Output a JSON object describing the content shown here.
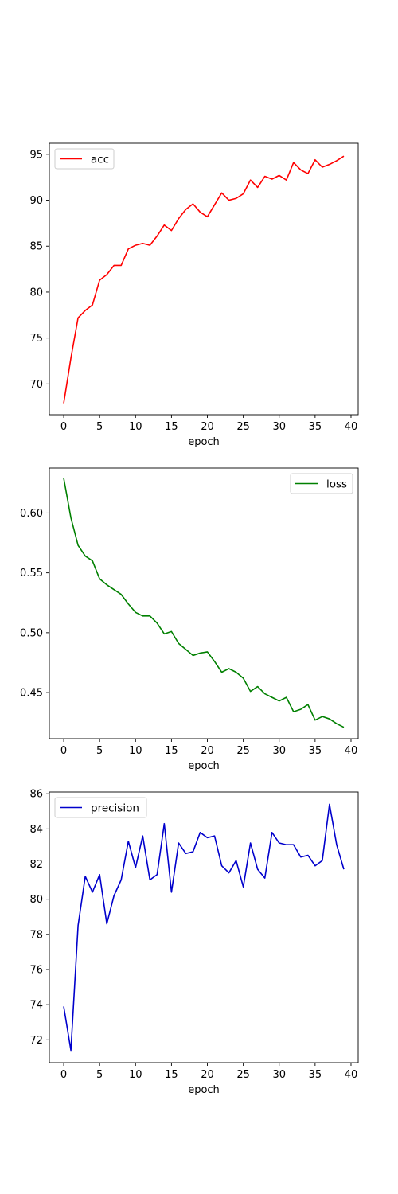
{
  "chart_data": [
    {
      "type": "line",
      "xlabel": "epoch",
      "ylabel": "",
      "xlim": [
        -2,
        41
      ],
      "ylim": [
        66.65,
        96.2
      ],
      "xticks": [
        0,
        5,
        10,
        15,
        20,
        25,
        30,
        35,
        40
      ],
      "yticks": [
        70,
        75,
        80,
        85,
        90,
        95
      ],
      "legend_position": "upper left",
      "grid": false,
      "x": [
        0,
        1,
        2,
        3,
        4,
        5,
        6,
        7,
        8,
        9,
        10,
        11,
        12,
        13,
        14,
        15,
        16,
        17,
        18,
        19,
        20,
        21,
        22,
        23,
        24,
        25,
        26,
        27,
        28,
        29,
        30,
        31,
        32,
        33,
        34,
        35,
        36,
        37,
        38,
        39
      ],
      "series": [
        {
          "name": "acc",
          "color": "#ff0000",
          "values": [
            67.9,
            72.8,
            77.2,
            78.0,
            78.6,
            81.3,
            81.9,
            82.9,
            82.9,
            84.7,
            85.1,
            85.3,
            85.1,
            86.1,
            87.3,
            86.7,
            88.0,
            89.0,
            89.6,
            88.7,
            88.2,
            89.5,
            90.8,
            90.0,
            90.2,
            90.7,
            92.2,
            91.4,
            92.6,
            92.3,
            92.7,
            92.2,
            94.1,
            93.3,
            92.9,
            94.4,
            93.6,
            93.9,
            94.3,
            94.8
          ]
        }
      ]
    },
    {
      "type": "line",
      "xlabel": "epoch",
      "ylabel": "",
      "xlim": [
        -2,
        41
      ],
      "ylim": [
        0.4115,
        0.6375
      ],
      "xticks": [
        0,
        5,
        10,
        15,
        20,
        25,
        30,
        35,
        40
      ],
      "yticks": [
        0.45,
        0.5,
        0.55,
        0.6
      ],
      "yticklabels": [
        "0.45",
        "0.50",
        "0.55",
        "0.60"
      ],
      "legend_position": "upper right",
      "grid": false,
      "x": [
        0,
        1,
        2,
        3,
        4,
        5,
        6,
        7,
        8,
        9,
        10,
        11,
        12,
        13,
        14,
        15,
        16,
        17,
        18,
        19,
        20,
        21,
        22,
        23,
        24,
        25,
        26,
        27,
        28,
        29,
        30,
        31,
        32,
        33,
        34,
        35,
        36,
        37,
        38,
        39
      ],
      "series": [
        {
          "name": "loss",
          "color": "#008000",
          "values": [
            0.629,
            0.596,
            0.573,
            0.564,
            0.56,
            0.545,
            0.54,
            0.536,
            0.532,
            0.524,
            0.517,
            0.514,
            0.514,
            0.508,
            0.499,
            0.501,
            0.491,
            0.486,
            0.481,
            0.483,
            0.484,
            0.476,
            0.467,
            0.47,
            0.467,
            0.462,
            0.451,
            0.455,
            0.449,
            0.446,
            0.443,
            0.446,
            0.434,
            0.436,
            0.44,
            0.427,
            0.43,
            0.428,
            0.424,
            0.421
          ]
        }
      ]
    },
    {
      "type": "line",
      "xlabel": "epoch",
      "ylabel": "",
      "xlim": [
        -2,
        41
      ],
      "ylim": [
        70.7,
        86.1
      ],
      "xticks": [
        0,
        5,
        10,
        15,
        20,
        25,
        30,
        35,
        40
      ],
      "yticks": [
        72,
        74,
        76,
        78,
        80,
        82,
        84,
        86
      ],
      "legend_position": "upper left",
      "grid": false,
      "x": [
        0,
        1,
        2,
        3,
        4,
        5,
        6,
        7,
        8,
        9,
        10,
        11,
        12,
        13,
        14,
        15,
        16,
        17,
        18,
        19,
        20,
        21,
        22,
        23,
        24,
        25,
        26,
        27,
        28,
        29,
        30,
        31,
        32,
        33,
        34,
        35,
        36,
        37,
        38,
        39
      ],
      "series": [
        {
          "name": "precision",
          "color": "#0000cc",
          "values": [
            73.9,
            71.4,
            78.5,
            81.3,
            80.4,
            81.4,
            78.6,
            80.2,
            81.1,
            83.3,
            81.8,
            83.6,
            81.1,
            81.4,
            84.3,
            80.4,
            83.2,
            82.6,
            82.7,
            83.8,
            83.5,
            83.6,
            81.9,
            81.5,
            82.2,
            80.7,
            83.2,
            81.7,
            81.2,
            83.8,
            83.2,
            83.1,
            83.1,
            82.4,
            82.5,
            81.9,
            82.2,
            85.4,
            83.1,
            81.7
          ]
        }
      ]
    }
  ]
}
